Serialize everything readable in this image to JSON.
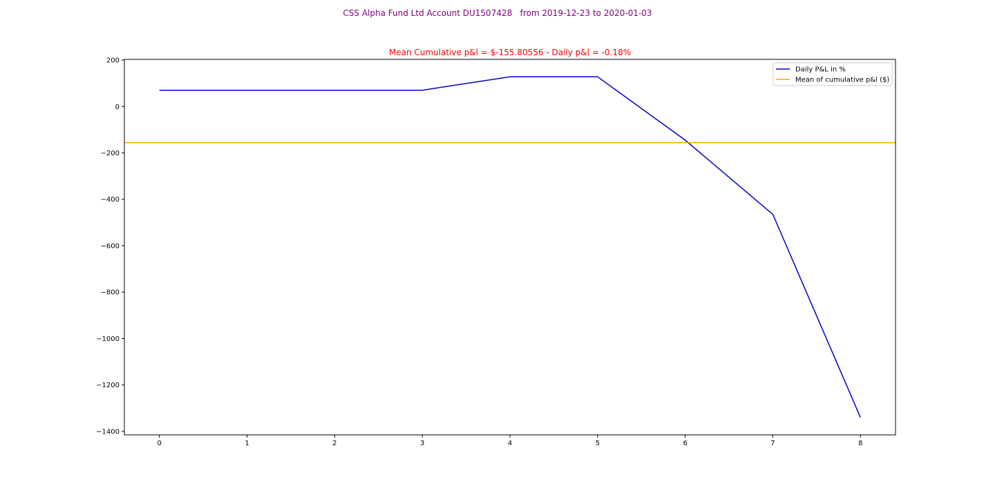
{
  "figure": {
    "suptitle": "CSS Alpha Fund Ltd Account DU1507428   from 2019-12-23 to 2020-01-03",
    "suptitle_color": "#800080"
  },
  "chart_data": {
    "type": "line",
    "title": "Mean Cumulative p&l = $-155.80556 - Daily p&l = -0.18%",
    "title_color": "#ff0000",
    "xlabel": "",
    "ylabel": "",
    "xlim": [
      -0.4,
      8.4
    ],
    "ylim": [
      -1415,
      203
    ],
    "xticks": [
      0,
      1,
      2,
      3,
      4,
      5,
      6,
      7,
      8
    ],
    "yticks": [
      200,
      0,
      -200,
      -400,
      -600,
      -800,
      -1000,
      -1200,
      -1400
    ],
    "ytick_labels": [
      "200",
      "0",
      "−200",
      "−400",
      "−600",
      "−800",
      "−1000",
      "−1200",
      "−1400"
    ],
    "grid": false,
    "legend_position": "top-right",
    "series": [
      {
        "name": "Daily P&L in %",
        "color": "#0000cd",
        "x": [
          0,
          1,
          2,
          3,
          4,
          5,
          6,
          7,
          8
        ],
        "y": [
          70,
          70,
          70,
          70,
          128,
          128,
          -145,
          -465,
          -1340
        ]
      }
    ],
    "hlines": [
      {
        "name": "Mean of cumulative p&l ($)",
        "color": "#ffa500",
        "y": -155.80556
      }
    ]
  }
}
